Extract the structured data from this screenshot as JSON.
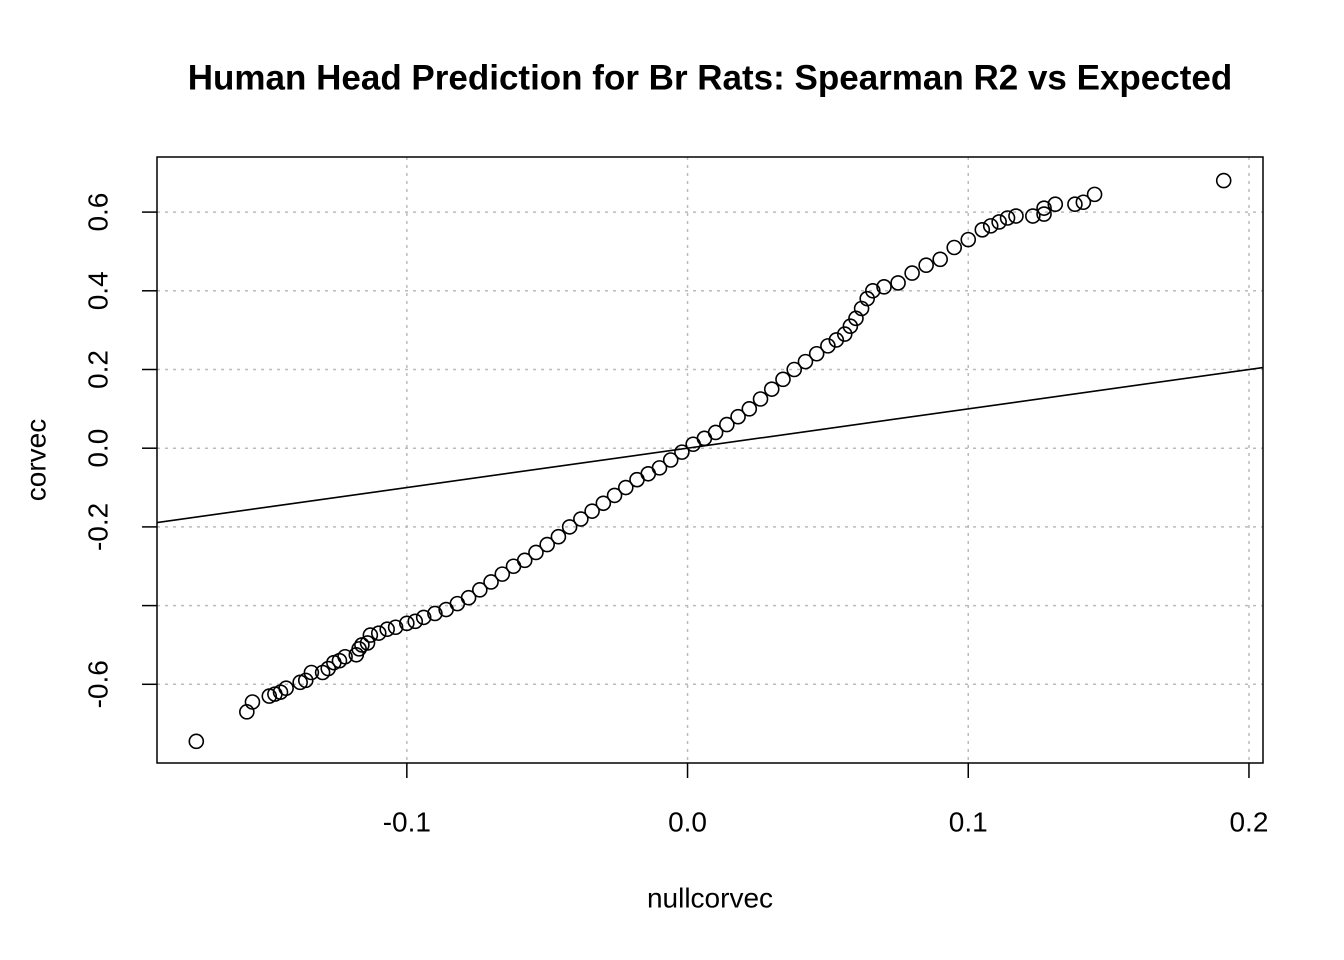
{
  "chart_data": {
    "type": "scatter",
    "title": "Human Head Prediction for Br Rats: Spearman R2 vs Expected",
    "xlabel": "nullcorvec",
    "ylabel": "corvec",
    "color": "#000000",
    "grid": true,
    "reference_line": {
      "slope": 1,
      "intercept": 0
    },
    "xlim": [
      -0.189,
      0.205
    ],
    "ylim": [
      -0.8,
      0.74
    ],
    "xticks": [
      -0.1,
      {
        "value": 0,
        "label": "0.0"
      },
      0.1,
      0.2
    ],
    "yticks": [
      -0.6,
      {
        "value": -0.4,
        "label": null
      },
      -0.2,
      {
        "value": 0,
        "label": "0.0"
      },
      0.2,
      0.4,
      0.6
    ],
    "x": [
      -0.175,
      -0.157,
      -0.155,
      -0.149,
      -0.147,
      -0.145,
      -0.143,
      -0.138,
      -0.136,
      -0.134,
      -0.13,
      -0.128,
      -0.126,
      -0.124,
      -0.122,
      -0.118,
      -0.117,
      -0.116,
      -0.114,
      -0.113,
      -0.11,
      -0.107,
      -0.104,
      -0.1,
      -0.097,
      -0.094,
      -0.09,
      -0.086,
      -0.082,
      -0.078,
      -0.074,
      -0.07,
      -0.066,
      -0.062,
      -0.058,
      -0.054,
      -0.05,
      -0.046,
      -0.042,
      -0.038,
      -0.034,
      -0.03,
      -0.026,
      -0.022,
      -0.018,
      -0.014,
      -0.01,
      -0.006,
      -0.002,
      0.002,
      0.006,
      0.01,
      0.014,
      0.018,
      0.022,
      0.026,
      0.03,
      0.034,
      0.038,
      0.042,
      0.046,
      0.05,
      0.053,
      0.056,
      0.058,
      0.06,
      0.062,
      0.064,
      0.066,
      0.07,
      0.075,
      0.08,
      0.085,
      0.09,
      0.095,
      0.1,
      0.105,
      0.108,
      0.111,
      0.114,
      0.117,
      0.123,
      0.127,
      0.127,
      0.131,
      0.138,
      0.141,
      0.145,
      0.191
    ],
    "values": [
      -0.745,
      -0.67,
      -0.645,
      -0.63,
      -0.625,
      -0.62,
      -0.61,
      -0.595,
      -0.59,
      -0.57,
      -0.57,
      -0.56,
      -0.545,
      -0.54,
      -0.53,
      -0.525,
      -0.51,
      -0.5,
      -0.495,
      -0.475,
      -0.47,
      -0.46,
      -0.455,
      -0.445,
      -0.44,
      -0.43,
      -0.42,
      -0.41,
      -0.395,
      -0.38,
      -0.36,
      -0.34,
      -0.32,
      -0.3,
      -0.285,
      -0.265,
      -0.245,
      -0.225,
      -0.2,
      -0.18,
      -0.16,
      -0.14,
      -0.12,
      -0.1,
      -0.08,
      -0.065,
      -0.05,
      -0.03,
      -0.01,
      0.01,
      0.025,
      0.04,
      0.06,
      0.08,
      0.1,
      0.125,
      0.15,
      0.175,
      0.2,
      0.22,
      0.24,
      0.26,
      0.275,
      0.29,
      0.31,
      0.33,
      0.355,
      0.38,
      0.4,
      0.41,
      0.42,
      0.445,
      0.465,
      0.48,
      0.51,
      0.53,
      0.555,
      0.565,
      0.575,
      0.585,
      0.59,
      0.59,
      0.595,
      0.61,
      0.62,
      0.62,
      0.625,
      0.645,
      0.68
    ]
  }
}
